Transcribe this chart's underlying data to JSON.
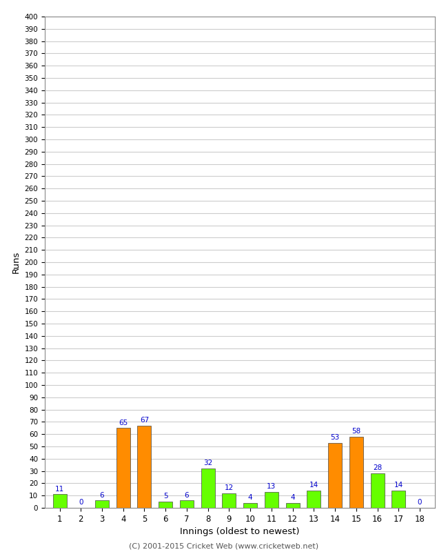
{
  "title": "",
  "xlabel": "Innings (oldest to newest)",
  "ylabel": "Runs",
  "innings": [
    1,
    2,
    3,
    4,
    5,
    6,
    7,
    8,
    9,
    10,
    11,
    12,
    13,
    14,
    15,
    16,
    17,
    18
  ],
  "values": [
    11,
    0,
    6,
    65,
    67,
    5,
    6,
    32,
    12,
    4,
    13,
    4,
    14,
    53,
    58,
    28,
    14,
    0
  ],
  "colors": [
    "#66ff00",
    "#66ff00",
    "#66ff00",
    "#ff8c00",
    "#ff8c00",
    "#66ff00",
    "#66ff00",
    "#66ff00",
    "#66ff00",
    "#66ff00",
    "#66ff00",
    "#66ff00",
    "#66ff00",
    "#ff8c00",
    "#ff8c00",
    "#66ff00",
    "#66ff00",
    "#66ff00"
  ],
  "ylim": [
    0,
    400
  ],
  "label_color": "#0000cc",
  "bar_edge_color": "#444444",
  "background_color": "#ffffff",
  "grid_color": "#cccccc",
  "footer": "(C) 2001-2015 Cricket Web (www.cricketweb.net)"
}
